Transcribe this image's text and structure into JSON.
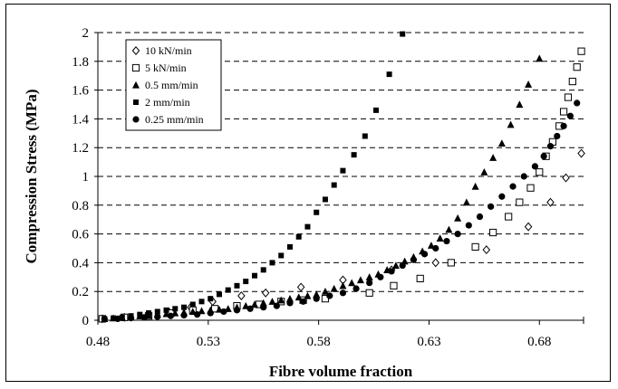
{
  "chart_data": {
    "type": "scatter",
    "title": "",
    "xlabel": "Fibre volume fraction",
    "ylabel": "Compression Stress (MPa)",
    "xlim": [
      0.48,
      0.7
    ],
    "ylim": [
      0,
      2
    ],
    "x_ticks": [
      "0.48",
      "0.53",
      "0.58",
      "0.63",
      "0.68"
    ],
    "y_ticks": [
      "0",
      "0.2",
      "0.4",
      "0.6",
      "0.8",
      "1",
      "1.2",
      "1.4",
      "1.6",
      "1.8",
      "2"
    ],
    "grid": "horizontal dashed",
    "legend_position": "top-left",
    "series": [
      {
        "name": "10 kN/min",
        "marker": "diamond-open",
        "color": "#000000",
        "points": [
          [
            0.482,
            0.01
          ],
          [
            0.492,
            0.02
          ],
          [
            0.503,
            0.04
          ],
          [
            0.512,
            0.06
          ],
          [
            0.522,
            0.09
          ],
          [
            0.532,
            0.13
          ],
          [
            0.545,
            0.17
          ],
          [
            0.556,
            0.19
          ],
          [
            0.572,
            0.23
          ],
          [
            0.591,
            0.28
          ],
          [
            0.613,
            0.35
          ],
          [
            0.633,
            0.4
          ],
          [
            0.656,
            0.49
          ],
          [
            0.675,
            0.65
          ],
          [
            0.685,
            0.82
          ],
          [
            0.692,
            0.99
          ],
          [
            0.699,
            1.16
          ]
        ]
      },
      {
        "name": "5 kN/min",
        "marker": "square-open",
        "color": "#000000",
        "points": [
          [
            0.482,
            0.01
          ],
          [
            0.492,
            0.02
          ],
          [
            0.503,
            0.03
          ],
          [
            0.513,
            0.05
          ],
          [
            0.523,
            0.07
          ],
          [
            0.533,
            0.08
          ],
          [
            0.543,
            0.1
          ],
          [
            0.553,
            0.11
          ],
          [
            0.563,
            0.13
          ],
          [
            0.573,
            0.14
          ],
          [
            0.583,
            0.15
          ],
          [
            0.603,
            0.19
          ],
          [
            0.614,
            0.24
          ],
          [
            0.626,
            0.29
          ],
          [
            0.64,
            0.4
          ],
          [
            0.651,
            0.51
          ],
          [
            0.659,
            0.61
          ],
          [
            0.666,
            0.72
          ],
          [
            0.671,
            0.82
          ],
          [
            0.676,
            0.92
          ],
          [
            0.68,
            1.03
          ],
          [
            0.683,
            1.14
          ],
          [
            0.686,
            1.24
          ],
          [
            0.689,
            1.35
          ],
          [
            0.691,
            1.45
          ],
          [
            0.693,
            1.55
          ],
          [
            0.695,
            1.66
          ],
          [
            0.697,
            1.76
          ],
          [
            0.699,
            1.87
          ]
        ]
      },
      {
        "name": "0.5 mm/min",
        "marker": "triangle-filled",
        "color": "#000000",
        "points": [
          [
            0.483,
            0.01
          ],
          [
            0.487,
            0.015
          ],
          [
            0.491,
            0.02
          ],
          [
            0.495,
            0.025
          ],
          [
            0.499,
            0.03
          ],
          [
            0.503,
            0.035
          ],
          [
            0.507,
            0.04
          ],
          [
            0.511,
            0.045
          ],
          [
            0.515,
            0.05
          ],
          [
            0.519,
            0.055
          ],
          [
            0.523,
            0.06
          ],
          [
            0.527,
            0.065
          ],
          [
            0.531,
            0.07
          ],
          [
            0.535,
            0.075
          ],
          [
            0.539,
            0.08
          ],
          [
            0.543,
            0.09
          ],
          [
            0.547,
            0.1
          ],
          [
            0.551,
            0.11
          ],
          [
            0.555,
            0.12
          ],
          [
            0.559,
            0.13
          ],
          [
            0.563,
            0.14
          ],
          [
            0.567,
            0.15
          ],
          [
            0.571,
            0.16
          ],
          [
            0.575,
            0.17
          ],
          [
            0.579,
            0.18
          ],
          [
            0.583,
            0.2
          ],
          [
            0.587,
            0.22
          ],
          [
            0.591,
            0.24
          ],
          [
            0.595,
            0.26
          ],
          [
            0.599,
            0.28
          ],
          [
            0.603,
            0.3
          ],
          [
            0.607,
            0.32
          ],
          [
            0.611,
            0.35
          ],
          [
            0.615,
            0.38
          ],
          [
            0.619,
            0.41
          ],
          [
            0.623,
            0.44
          ],
          [
            0.627,
            0.48
          ],
          [
            0.631,
            0.52
          ],
          [
            0.635,
            0.57
          ],
          [
            0.639,
            0.63
          ],
          [
            0.643,
            0.71
          ],
          [
            0.647,
            0.82
          ],
          [
            0.651,
            0.93
          ],
          [
            0.655,
            1.03
          ],
          [
            0.659,
            1.13
          ],
          [
            0.663,
            1.23
          ],
          [
            0.667,
            1.36
          ],
          [
            0.671,
            1.5
          ],
          [
            0.675,
            1.64
          ],
          [
            0.68,
            1.82
          ]
        ]
      },
      {
        "name": "2 mm/min",
        "marker": "square-filled",
        "color": "#000000",
        "points": [
          [
            0.483,
            0.01
          ],
          [
            0.487,
            0.015
          ],
          [
            0.491,
            0.02
          ],
          [
            0.495,
            0.03
          ],
          [
            0.499,
            0.04
          ],
          [
            0.503,
            0.05
          ],
          [
            0.507,
            0.06
          ],
          [
            0.511,
            0.07
          ],
          [
            0.515,
            0.08
          ],
          [
            0.519,
            0.09
          ],
          [
            0.523,
            0.11
          ],
          [
            0.527,
            0.13
          ],
          [
            0.531,
            0.15
          ],
          [
            0.535,
            0.18
          ],
          [
            0.539,
            0.21
          ],
          [
            0.543,
            0.24
          ],
          [
            0.547,
            0.27
          ],
          [
            0.551,
            0.31
          ],
          [
            0.555,
            0.35
          ],
          [
            0.559,
            0.4
          ],
          [
            0.563,
            0.45
          ],
          [
            0.567,
            0.51
          ],
          [
            0.571,
            0.58
          ],
          [
            0.575,
            0.65
          ],
          [
            0.579,
            0.75
          ],
          [
            0.583,
            0.84
          ],
          [
            0.587,
            0.94
          ],
          [
            0.591,
            1.04
          ],
          [
            0.596,
            1.15
          ],
          [
            0.601,
            1.28
          ],
          [
            0.606,
            1.46
          ],
          [
            0.612,
            1.71
          ],
          [
            0.618,
            1.99
          ]
        ]
      },
      {
        "name": "0.25 mm/min",
        "marker": "circle-filled",
        "color": "#000000",
        "points": [
          [
            0.483,
            0.01
          ],
          [
            0.489,
            0.01
          ],
          [
            0.495,
            0.015
          ],
          [
            0.501,
            0.02
          ],
          [
            0.507,
            0.025
          ],
          [
            0.513,
            0.03
          ],
          [
            0.519,
            0.035
          ],
          [
            0.525,
            0.04
          ],
          [
            0.531,
            0.05
          ],
          [
            0.537,
            0.06
          ],
          [
            0.543,
            0.07
          ],
          [
            0.549,
            0.08
          ],
          [
            0.555,
            0.09
          ],
          [
            0.561,
            0.1
          ],
          [
            0.567,
            0.12
          ],
          [
            0.573,
            0.13
          ],
          [
            0.579,
            0.15
          ],
          [
            0.585,
            0.17
          ],
          [
            0.591,
            0.19
          ],
          [
            0.597,
            0.22
          ],
          [
            0.603,
            0.26
          ],
          [
            0.608,
            0.3
          ],
          [
            0.613,
            0.34
          ],
          [
            0.618,
            0.38
          ],
          [
            0.623,
            0.42
          ],
          [
            0.628,
            0.46
          ],
          [
            0.633,
            0.5
          ],
          [
            0.638,
            0.55
          ],
          [
            0.643,
            0.6
          ],
          [
            0.648,
            0.66
          ],
          [
            0.653,
            0.72
          ],
          [
            0.658,
            0.79
          ],
          [
            0.663,
            0.86
          ],
          [
            0.668,
            0.93
          ],
          [
            0.673,
            1.0
          ],
          [
            0.678,
            1.07
          ],
          [
            0.682,
            1.14
          ],
          [
            0.685,
            1.21
          ],
          [
            0.688,
            1.28
          ],
          [
            0.691,
            1.35
          ],
          [
            0.694,
            1.42
          ],
          [
            0.697,
            1.51
          ]
        ]
      }
    ]
  }
}
